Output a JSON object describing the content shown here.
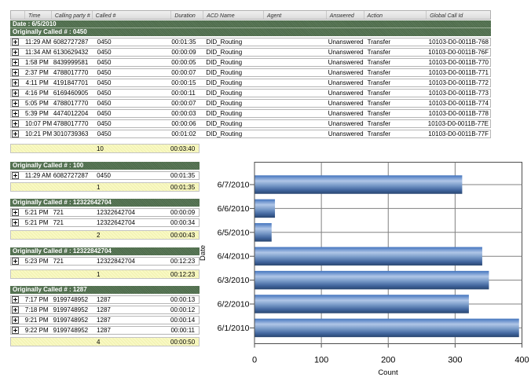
{
  "report": {
    "columns": [
      {
        "key": "expand",
        "label": ""
      },
      {
        "key": "time",
        "label": "Time"
      },
      {
        "key": "calling",
        "label": "Calling party #"
      },
      {
        "key": "called",
        "label": "Called #"
      },
      {
        "key": "duration",
        "label": "Duration"
      },
      {
        "key": "acd",
        "label": "ACD Name"
      },
      {
        "key": "agent",
        "label": "Agent"
      },
      {
        "key": "answered",
        "label": "Answered"
      },
      {
        "key": "action",
        "label": "Action"
      },
      {
        "key": "global",
        "label": "Global Call Id"
      }
    ],
    "date_band": "Date : 6/5/2010",
    "groups": [
      {
        "label": "Originally Called # : 0450",
        "full_width": true,
        "rows": [
          {
            "time": "11:29 AM",
            "calling": "6082727287",
            "called": "0450",
            "duration": "00:01:35",
            "acd": "DID_Routing",
            "agent": "",
            "answered": "Unanswered",
            "action": "Transfer",
            "global": "10103-D0-0011B-768"
          },
          {
            "time": "11:34 AM",
            "calling": "6130629432",
            "called": "0450",
            "duration": "00:00:09",
            "acd": "DID_Routing",
            "agent": "",
            "answered": "Unanswered",
            "action": "Transfer",
            "global": "10103-D0-0011B-76F"
          },
          {
            "time": "1:58 PM",
            "calling": "8439999581",
            "called": "0450",
            "duration": "00:00:05",
            "acd": "DID_Routing",
            "agent": "",
            "answered": "Unanswered",
            "action": "Transfer",
            "global": "10103-D0-0011B-770"
          },
          {
            "time": "2:37 PM",
            "calling": "4788017770",
            "called": "0450",
            "duration": "00:00:07",
            "acd": "DID_Routing",
            "agent": "",
            "answered": "Unanswered",
            "action": "Transfer",
            "global": "10103-D0-0011B-771"
          },
          {
            "time": "4:11 PM",
            "calling": "4191847701",
            "called": "0450",
            "duration": "00:00:15",
            "acd": "DID_Routing",
            "agent": "",
            "answered": "Unanswered",
            "action": "Transfer",
            "global": "10103-D0-0011B-772"
          },
          {
            "time": "4:16 PM",
            "calling": "6169460905",
            "called": "0450",
            "duration": "00:00:11",
            "acd": "DID_Routing",
            "agent": "",
            "answered": "Unanswered",
            "action": "Transfer",
            "global": "10103-D0-0011B-773"
          },
          {
            "time": "5:05 PM",
            "calling": "4788017770",
            "called": "0450",
            "duration": "00:00:07",
            "acd": "DID_Routing",
            "agent": "",
            "answered": "Unanswered",
            "action": "Transfer",
            "global": "10103-D0-0011B-774"
          },
          {
            "time": "5:39 PM",
            "calling": "4474012204",
            "called": "0450",
            "duration": "00:00:03",
            "acd": "DID_Routing",
            "agent": "",
            "answered": "Unanswered",
            "action": "Transfer",
            "global": "10103-D0-0011B-778"
          },
          {
            "time": "10:07 PM",
            "calling": "4788017770",
            "called": "0450",
            "duration": "00:00:06",
            "acd": "DID_Routing",
            "agent": "",
            "answered": "Unanswered",
            "action": "Transfer",
            "global": "10103-D0-0011B-77E"
          },
          {
            "time": "10:21 PM",
            "calling": "3010739363",
            "called": "0450",
            "duration": "00:01:02",
            "acd": "DID_Routing",
            "agent": "",
            "answered": "Unanswered",
            "action": "Transfer",
            "global": "10103-D0-0011B-77F"
          }
        ],
        "summary": {
          "count": "10",
          "duration": "00:03:40"
        }
      },
      {
        "label": "Originally Called # : 100",
        "full_width": false,
        "rows": [
          {
            "time": "11:29 AM",
            "calling": "6082727287",
            "called": "0450",
            "duration": "00:01:35"
          }
        ],
        "summary": {
          "count": "1",
          "duration": "00:01:35"
        }
      },
      {
        "label": "Originally Called # : 12322642704",
        "full_width": false,
        "rows": [
          {
            "time": "5:21 PM",
            "calling": "721",
            "called": "12322642704",
            "duration": "00:00:09"
          },
          {
            "time": "5:21 PM",
            "calling": "721",
            "called": "12322642704",
            "duration": "00:00:34"
          }
        ],
        "summary": {
          "count": "2",
          "duration": "00:00:43"
        }
      },
      {
        "label": "Originally Called # : 12322842704",
        "full_width": false,
        "rows": [
          {
            "time": "5:23 PM",
            "calling": "721",
            "called": "12322842704",
            "duration": "00:12:23"
          }
        ],
        "summary": {
          "count": "1",
          "duration": "00:12:23"
        }
      },
      {
        "label": "Originally Called # : 1287",
        "full_width": false,
        "rows": [
          {
            "time": "7:17 PM",
            "calling": "9199748952",
            "called": "1287",
            "duration": "00:00:13"
          },
          {
            "time": "7:18 PM",
            "calling": "9199748952",
            "called": "1287",
            "duration": "00:00:12"
          },
          {
            "time": "9:21 PM",
            "calling": "9199748952",
            "called": "1287",
            "duration": "00:00:14"
          },
          {
            "time": "9:22 PM",
            "calling": "9199748952",
            "called": "1287",
            "duration": "00:00:11"
          }
        ],
        "summary": {
          "count": "4",
          "duration": "00:00:50"
        }
      }
    ]
  },
  "chart_data": {
    "type": "bar",
    "orientation": "horizontal",
    "title": "",
    "categories": [
      "6/7/2010",
      "6/6/2010",
      "6/5/2010",
      "6/4/2010",
      "6/3/2010",
      "6/2/2010",
      "6/1/2010"
    ],
    "values": [
      310,
      30,
      25,
      340,
      350,
      320,
      395
    ],
    "xlabel": "Count",
    "ylabel": "Date",
    "xlim": [
      0,
      400
    ],
    "xticks": [
      0,
      100,
      200,
      300,
      400
    ],
    "grid": true,
    "legend": "none",
    "bar_color_light": "#b0c6e7",
    "bar_color_dark": "#28456f"
  }
}
